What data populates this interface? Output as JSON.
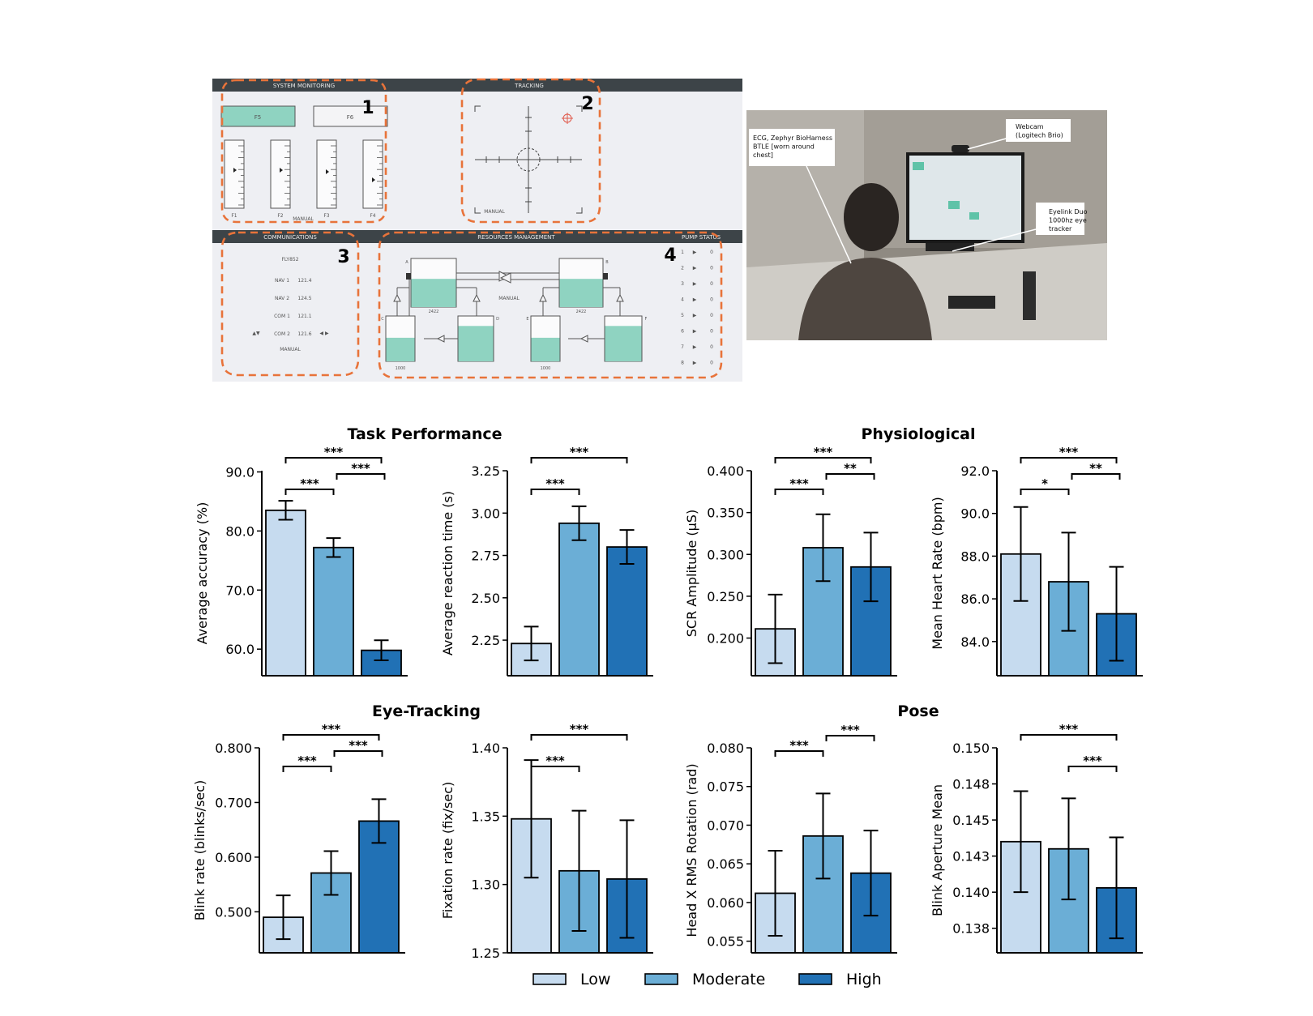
{
  "interface": {
    "panels": {
      "system_monitoring": "SYSTEM MONITORING",
      "tracking": "TRACKING",
      "communications": "COMMUNICATIONS",
      "resources_management": "RESOURCES MANAGEMENT",
      "pump_status": "PUMP STATUS"
    },
    "region_numbers": [
      "1",
      "2",
      "3",
      "4"
    ],
    "sysmon": {
      "buttons": [
        "F5",
        "F6"
      ],
      "gauges": [
        "F1",
        "F2",
        "F3",
        "F4"
      ],
      "mode": "MANUAL"
    },
    "tracking_mode": "MANUAL",
    "comms": {
      "callsign": "FLY852",
      "rows": [
        {
          "label": "NAV 1",
          "value": "121.4"
        },
        {
          "label": "NAV 2",
          "value": "124.5"
        },
        {
          "label": "COM 1",
          "value": "121.1"
        },
        {
          "label": "COM 2",
          "value": "121.6"
        }
      ],
      "mode": "MANUAL"
    },
    "resman": {
      "tank_labels": [
        "A",
        "B",
        "C",
        "D",
        "E",
        "F"
      ],
      "main_values": [
        "2422",
        "2422"
      ],
      "lower_values": [
        "1000",
        "1000"
      ],
      "mode": "MANUAL"
    },
    "pumps": [
      "1",
      "2",
      "3",
      "4",
      "5",
      "6",
      "7",
      "8"
    ],
    "pump_value": "0",
    "accent": "#8fd3c1",
    "dash_color": "#e8733a"
  },
  "photo": {
    "callouts": {
      "ecg": [
        "ECG, Zephyr BioHarness",
        "BTLE [worn around",
        "chest]"
      ],
      "webcam": [
        "Webcam",
        "(Logitech Brio)"
      ],
      "eyelink": [
        "Eyelink Duo",
        "1000hz eye",
        "tracker"
      ]
    }
  },
  "legend": {
    "items": [
      {
        "label": "Low",
        "color": "#c6dbef"
      },
      {
        "label": "Moderate",
        "color": "#6baed6"
      },
      {
        "label": "High",
        "color": "#2171b5"
      }
    ]
  },
  "group_titles": [
    "Task Performance",
    "Physiological",
    "Eye-Tracking",
    "Pose"
  ],
  "chart_data": [
    {
      "type": "bar",
      "categories": [
        "Low",
        "Moderate",
        "High"
      ],
      "ylabel": "Average accuracy (%)",
      "values": [
        83.5,
        77.2,
        59.8
      ],
      "errors": [
        1.6,
        1.6,
        1.7
      ],
      "ylim": [
        55.5,
        90.2
      ],
      "yticks": [
        "90.0",
        "80.0",
        "70.0",
        "60.0"
      ],
      "sig": [
        {
          "pair": [
            0,
            1
          ],
          "stars": "***"
        },
        {
          "pair": [
            1,
            2
          ],
          "stars": "***"
        },
        {
          "pair": [
            0,
            2
          ],
          "stars": "***"
        }
      ]
    },
    {
      "type": "bar",
      "categories": [
        "Low",
        "Moderate",
        "High"
      ],
      "ylabel": "Average reaction time (s)",
      "values": [
        2.23,
        2.94,
        2.8
      ],
      "errors": [
        0.1,
        0.1,
        0.1
      ],
      "ylim": [
        2.04,
        3.25
      ],
      "yticks": [
        "3.25",
        "3.00",
        "2.75",
        "2.50",
        "2.25"
      ],
      "sig": [
        {
          "pair": [
            0,
            1
          ],
          "stars": "***"
        },
        {
          "pair": [
            0,
            2
          ],
          "stars": "***"
        }
      ]
    },
    {
      "type": "bar",
      "categories": [
        "Low",
        "Moderate",
        "High"
      ],
      "ylabel": "SCR Amplitude (µS)",
      "values": [
        0.211,
        0.308,
        0.285
      ],
      "errors": [
        0.041,
        0.04,
        0.041
      ],
      "ylim": [
        0.155,
        0.4
      ],
      "yticks": [
        "0.400",
        "0.350",
        "0.300",
        "0.250",
        "0.200"
      ],
      "sig": [
        {
          "pair": [
            0,
            1
          ],
          "stars": "***"
        },
        {
          "pair": [
            1,
            2
          ],
          "stars": "**"
        },
        {
          "pair": [
            0,
            2
          ],
          "stars": "***"
        }
      ]
    },
    {
      "type": "bar",
      "categories": [
        "Low",
        "Moderate",
        "High"
      ],
      "ylabel": "Mean Heart Rate (bpm)",
      "values": [
        88.1,
        86.8,
        85.3
      ],
      "errors": [
        2.2,
        2.3,
        2.2
      ],
      "ylim": [
        82.4,
        92.0
      ],
      "yticks": [
        "92.0",
        "90.0",
        "88.0",
        "86.0",
        "84.0"
      ],
      "sig": [
        {
          "pair": [
            0,
            1
          ],
          "stars": "*"
        },
        {
          "pair": [
            1,
            2
          ],
          "stars": "**"
        },
        {
          "pair": [
            0,
            2
          ],
          "stars": "***"
        }
      ]
    },
    {
      "type": "bar",
      "categories": [
        "Low",
        "Moderate",
        "High"
      ],
      "ylabel": "Blink rate (blinks/sec)",
      "values": [
        0.49,
        0.571,
        0.666
      ],
      "errors": [
        0.04,
        0.04,
        0.04
      ],
      "ylim": [
        0.425,
        0.8
      ],
      "yticks": [
        "0.800",
        "0.700",
        "0.600",
        "0.500"
      ],
      "sig": [
        {
          "pair": [
            0,
            1
          ],
          "stars": "***"
        },
        {
          "pair": [
            1,
            2
          ],
          "stars": "***"
        },
        {
          "pair": [
            0,
            2
          ],
          "stars": "***"
        }
      ]
    },
    {
      "type": "bar",
      "categories": [
        "Low",
        "Moderate",
        "High"
      ],
      "ylabel": "Fixation rate (fix/sec)",
      "values": [
        1.348,
        1.31,
        1.304
      ],
      "errors": [
        0.043,
        0.044,
        0.043
      ],
      "ylim": [
        1.25,
        1.4
      ],
      "yticks": [
        "1.40",
        "1.35",
        "1.30",
        "1.25"
      ],
      "sig": [
        {
          "pair": [
            0,
            1
          ],
          "stars": "***"
        },
        {
          "pair": [
            0,
            2
          ],
          "stars": "***"
        }
      ]
    },
    {
      "type": "bar",
      "categories": [
        "Low",
        "Moderate",
        "High"
      ],
      "ylabel": "Head X RMS Rotation (rad)",
      "values": [
        0.0612,
        0.0686,
        0.0638
      ],
      "errors": [
        0.0055,
        0.0055,
        0.0055
      ],
      "ylim": [
        0.0535,
        0.08
      ],
      "yticks": [
        "0.080",
        "0.075",
        "0.070",
        "0.065",
        "0.060",
        "0.055"
      ],
      "sig": [
        {
          "pair": [
            0,
            1
          ],
          "stars": "***"
        },
        {
          "pair": [
            1,
            2
          ],
          "stars": "***"
        }
      ]
    },
    {
      "type": "bar",
      "categories": [
        "Low",
        "Moderate",
        "High"
      ],
      "ylabel": "Blink Aperture Mean",
      "values": [
        0.1435,
        0.143,
        0.1403
      ],
      "errors": [
        0.0035,
        0.0035,
        0.0035
      ],
      "ylim": [
        0.1358,
        0.15
      ],
      "yticks": [
        "0.150",
        "0.148",
        "0.145",
        "0.143",
        "0.140",
        "0.138"
      ],
      "ytick_values": [
        0.15,
        0.1475,
        0.145,
        0.1425,
        0.14,
        0.1375
      ],
      "sig": [
        {
          "pair": [
            1,
            2
          ],
          "stars": "***"
        },
        {
          "pair": [
            0,
            2
          ],
          "stars": "***"
        }
      ]
    }
  ]
}
